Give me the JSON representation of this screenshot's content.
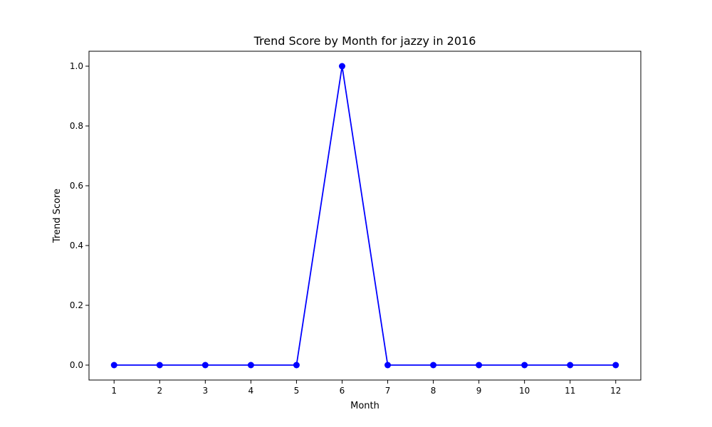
{
  "chart_data": {
    "type": "line",
    "title": "Trend Score by Month for jazzy in 2016",
    "xlabel": "Month",
    "ylabel": "Trend Score",
    "x": [
      1,
      2,
      3,
      4,
      5,
      6,
      7,
      8,
      9,
      10,
      11,
      12
    ],
    "series": [
      {
        "values": [
          0,
          0,
          0,
          0,
          0,
          1.0,
          0,
          0,
          0,
          0,
          0,
          0
        ],
        "color": "#0000ff",
        "marker": "circle"
      }
    ],
    "xticks": [
      "1",
      "2",
      "3",
      "4",
      "5",
      "6",
      "7",
      "8",
      "9",
      "10",
      "11",
      "12"
    ],
    "yticks": [
      "0.0",
      "0.2",
      "0.4",
      "0.6",
      "0.8",
      "1.0"
    ],
    "ytick_values": [
      0,
      0.2,
      0.4,
      0.6,
      0.8,
      1.0
    ],
    "xlim": [
      0.45,
      12.55
    ],
    "ylim": [
      -0.05,
      1.05
    ],
    "grid": false,
    "legend": "none"
  }
}
